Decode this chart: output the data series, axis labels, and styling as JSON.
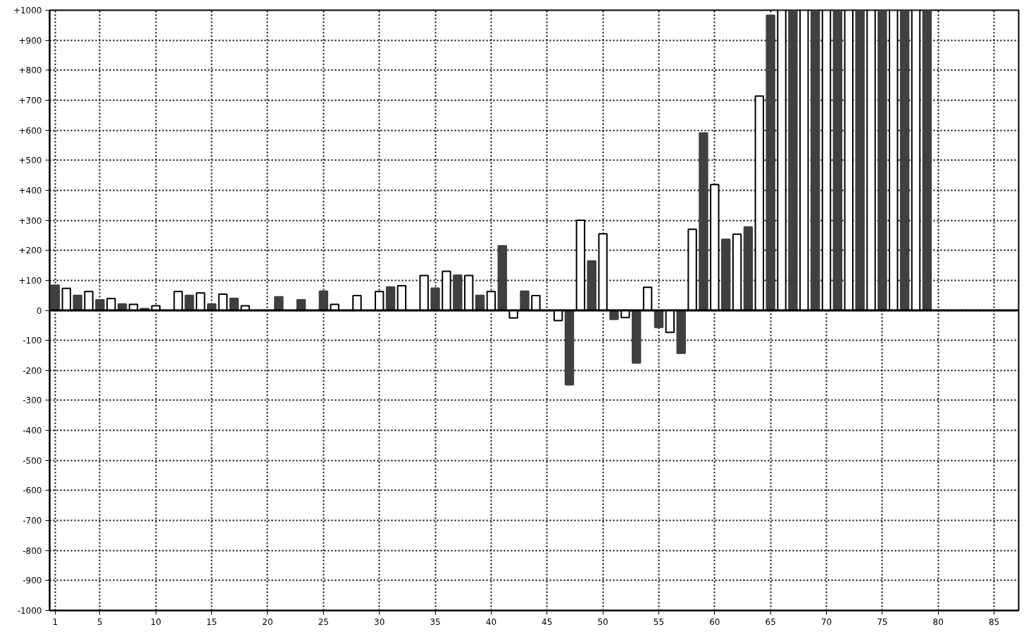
{
  "chart_data": {
    "type": "bar",
    "series": [
      {
        "color": "#404040",
        "x": [
          1,
          3,
          5,
          7,
          9,
          11,
          13,
          15,
          17,
          19,
          21,
          23,
          25,
          27,
          29,
          31,
          33,
          35,
          37,
          39,
          41,
          43,
          45,
          47,
          49,
          51,
          53,
          55,
          57,
          59,
          61,
          63,
          65,
          67,
          69,
          71,
          73,
          75,
          77,
          79
        ],
        "values": [
          84,
          50,
          35,
          21,
          6,
          null,
          50,
          21,
          40,
          null,
          45,
          35,
          64,
          null,
          null,
          78,
          null,
          74,
          117,
          50,
          215,
          64,
          null,
          -248,
          165,
          -30,
          -175,
          -57,
          -143,
          591,
          237,
          278,
          983,
          1000,
          1000,
          1000,
          1000,
          1000,
          1000,
          1000
        ]
      },
      {
        "color": "#ffffff",
        "x": [
          2,
          4,
          6,
          8,
          10,
          12,
          14,
          16,
          18,
          20,
          22,
          24,
          26,
          28,
          30,
          32,
          34,
          36,
          38,
          40,
          42,
          44,
          46,
          48,
          50,
          52,
          54,
          56,
          58,
          60,
          62,
          64,
          66,
          68,
          70,
          72,
          74,
          76,
          78
        ],
        "values": [
          73,
          63,
          39,
          20,
          15,
          63,
          58,
          54,
          15,
          null,
          null,
          null,
          20,
          49,
          63,
          82,
          116,
          130,
          116,
          63,
          -25,
          49,
          -34,
          300,
          255,
          -24,
          77,
          -73,
          270,
          419,
          254,
          714,
          1000,
          1000,
          1000,
          1000,
          1000,
          1000,
          1000
        ]
      }
    ],
    "xlim": [
      0.5,
      87.2
    ],
    "xticks": [
      1,
      5,
      10,
      15,
      20,
      25,
      30,
      35,
      40,
      45,
      50,
      55,
      60,
      65,
      70,
      75,
      80,
      85
    ],
    "ylim": [
      -1000,
      1000
    ],
    "yticks": [
      {
        "value": -1000,
        "label": "-1000"
      },
      {
        "value": -900,
        "label": "-900"
      },
      {
        "value": -800,
        "label": "-800"
      },
      {
        "value": -700,
        "label": "-700"
      },
      {
        "value": -600,
        "label": "-600"
      },
      {
        "value": -500,
        "label": "-500"
      },
      {
        "value": -400,
        "label": "-400"
      },
      {
        "value": -300,
        "label": "-300"
      },
      {
        "value": -200,
        "label": "-200"
      },
      {
        "value": -100,
        "label": "-100"
      },
      0,
      {
        "value": 100,
        "label": "+100"
      },
      {
        "value": 200,
        "label": "+200"
      },
      {
        "value": 300,
        "label": "+300"
      },
      {
        "value": 400,
        "label": "+400"
      },
      {
        "value": 500,
        "label": "+500"
      },
      {
        "value": 600,
        "label": "+600"
      },
      {
        "value": 700,
        "label": "+700"
      },
      {
        "value": 800,
        "label": "+800"
      },
      {
        "value": 900,
        "label": "+900"
      },
      {
        "value": 1000,
        "label": "+1000"
      }
    ],
    "ref_lines": [
      {
        "axis": "y",
        "value": 0,
        "color": "#000000"
      }
    ],
    "grid": true
  }
}
